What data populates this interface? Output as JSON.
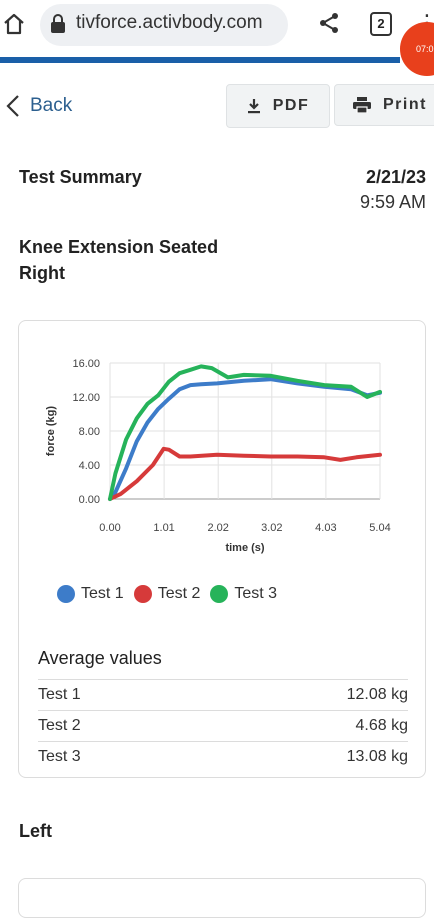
{
  "browser": {
    "url": "tivforce.activbody.com",
    "tab_count": "2",
    "recording_time": "07:0"
  },
  "toolbar": {
    "back_label": "Back",
    "pdf_label": "PDF",
    "print_label": "Print"
  },
  "summary": {
    "title": "Test Summary",
    "date": "2/21/23",
    "time": "9:59 AM",
    "exercise_line1": "Knee Extension Seated",
    "exercise_line2": "Right"
  },
  "chart_data": {
    "type": "line",
    "xlabel": "time (s)",
    "ylabel": "force (kg)",
    "x_ticks": [
      "0.00",
      "1.01",
      "2.02",
      "3.02",
      "4.03",
      "5.04"
    ],
    "y_ticks": [
      "0.00",
      "4.00",
      "8.00",
      "12.00",
      "16.00"
    ],
    "xlim": [
      0,
      5.04
    ],
    "ylim": [
      0,
      16
    ],
    "grid": true,
    "legend_position": "bottom-left",
    "series": [
      {
        "name": "Test 1",
        "color": "#3d7cc9",
        "x": [
          0,
          0.1,
          0.3,
          0.5,
          0.7,
          0.9,
          1.1,
          1.3,
          1.5,
          1.7,
          2.0,
          2.5,
          3.0,
          3.5,
          4.0,
          4.5,
          4.8,
          5.04
        ],
        "y": [
          0,
          0.8,
          3.6,
          6.8,
          9.0,
          10.6,
          11.8,
          12.9,
          13.4,
          13.5,
          13.6,
          13.9,
          14.1,
          13.6,
          13.2,
          12.9,
          12.2,
          12.5
        ]
      },
      {
        "name": "Test 2",
        "color": "#d63a3a",
        "x": [
          0,
          0.2,
          0.5,
          0.8,
          1.0,
          1.1,
          1.3,
          1.5,
          2.0,
          2.5,
          3.0,
          3.5,
          4.0,
          4.3,
          4.6,
          5.04
        ],
        "y": [
          0,
          0.6,
          2.1,
          4.0,
          5.9,
          5.8,
          5.0,
          5.0,
          5.2,
          5.1,
          5.0,
          5.0,
          4.9,
          4.6,
          4.9,
          5.2
        ]
      },
      {
        "name": "Test 3",
        "color": "#26b35a",
        "x": [
          0,
          0.1,
          0.3,
          0.5,
          0.7,
          0.9,
          1.1,
          1.3,
          1.5,
          1.7,
          1.9,
          2.2,
          2.5,
          3.0,
          3.5,
          4.0,
          4.5,
          4.8,
          5.04
        ],
        "y": [
          0,
          3.0,
          7.0,
          9.5,
          11.2,
          12.2,
          13.8,
          14.8,
          15.2,
          15.6,
          15.4,
          14.3,
          14.6,
          14.5,
          13.9,
          13.4,
          13.2,
          12.0,
          12.6
        ]
      }
    ]
  },
  "averages": {
    "title": "Average values",
    "rows": [
      {
        "label": "Test 1",
        "value": "12.08 kg"
      },
      {
        "label": "Test 2",
        "value": "4.68 kg"
      },
      {
        "label": "Test 3",
        "value": "13.08 kg"
      }
    ]
  },
  "next_section": {
    "title": "Left"
  }
}
